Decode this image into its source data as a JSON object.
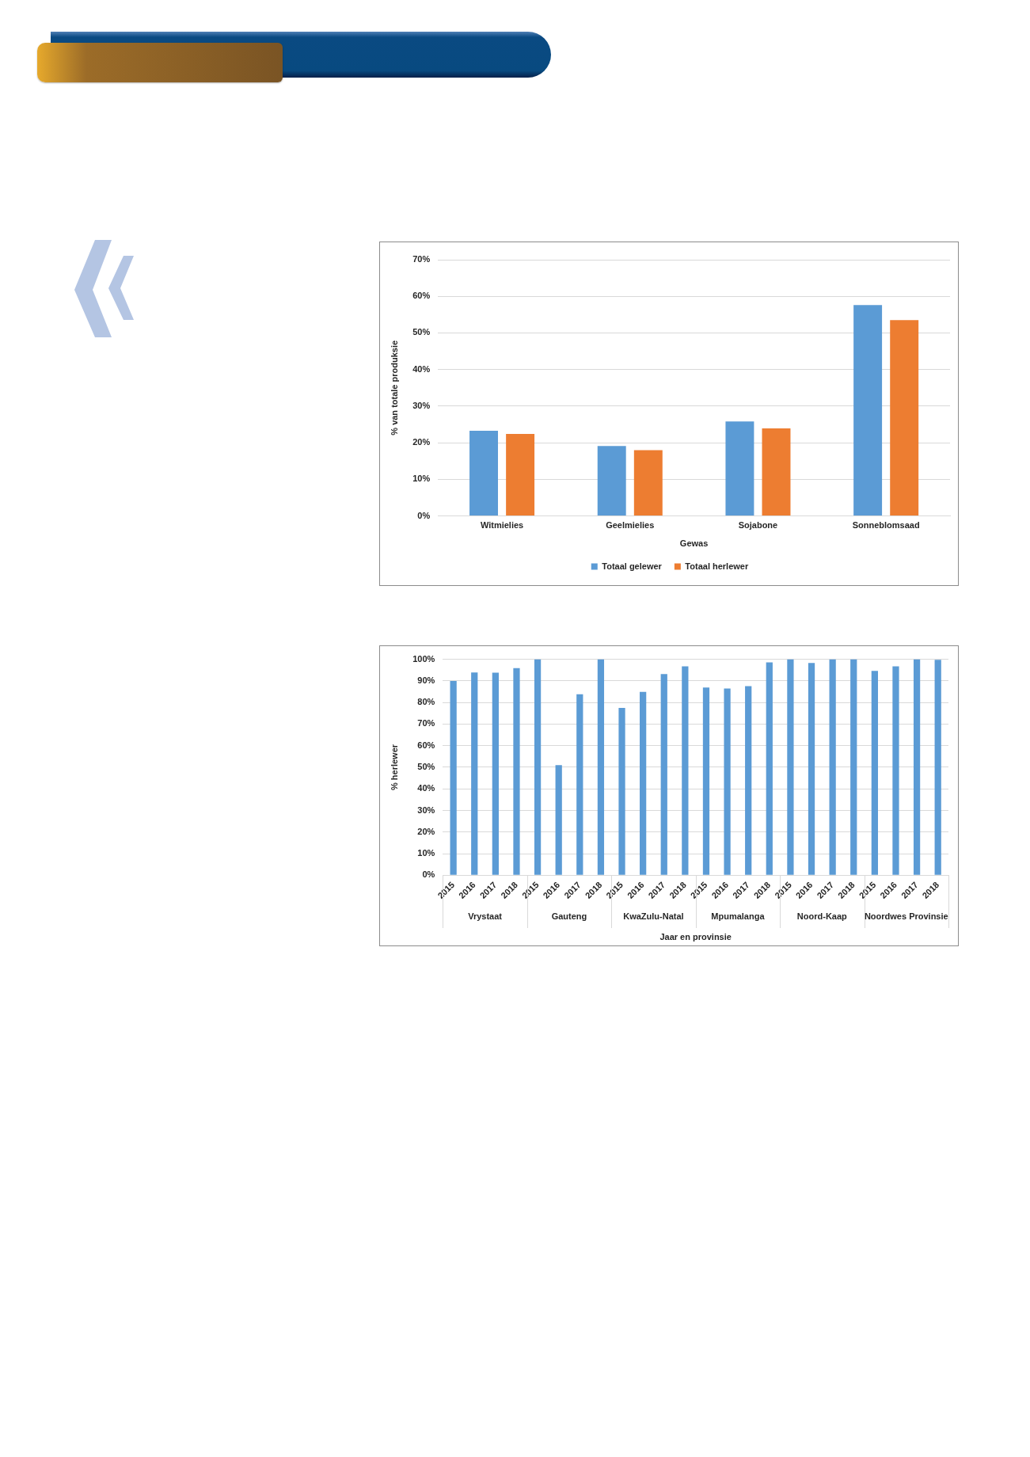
{
  "chart_data": [
    {
      "type": "bar",
      "categories": [
        "Witmielies",
        "Geelmielies",
        "Sojabone",
        "Sonneblomsaad"
      ],
      "series": [
        {
          "name": "Totaal gelewer",
          "color": "#5b9bd5",
          "values": [
            23.3,
            19.1,
            25.8,
            57.6
          ]
        },
        {
          "name": "Totaal herlewer",
          "color": "#ed7d31",
          "values": [
            22.4,
            18.0,
            23.9,
            53.5
          ]
        }
      ],
      "xlabel": "Gewas",
      "ylabel": "% van totale produksie",
      "ylim": [
        0,
        70
      ],
      "yticks": [
        {
          "value": 0,
          "label": "0%"
        },
        {
          "value": 10,
          "label": "10%"
        },
        {
          "value": 20,
          "label": "20%"
        },
        {
          "value": 30,
          "label": "30%"
        },
        {
          "value": 40,
          "label": "40%"
        },
        {
          "value": 50,
          "label": "50%"
        },
        {
          "value": 60,
          "label": "60%"
        },
        {
          "value": 70,
          "label": "70%"
        }
      ],
      "grid": "y",
      "legend": "bottom"
    },
    {
      "type": "bar",
      "categories": [
        "2015",
        "2016",
        "2017",
        "2018",
        "2015",
        "2016",
        "2017",
        "2018",
        "2015",
        "2016",
        "2017",
        "2018",
        "2015",
        "2016",
        "2017",
        "2018",
        "2015",
        "2016",
        "2017",
        "2018",
        "2015",
        "2016",
        "2017",
        "2018"
      ],
      "values": [
        90.0,
        93.9,
        93.8,
        95.9,
        100,
        51.0,
        83.8,
        100,
        77.5,
        84.9,
        93.2,
        96.7,
        86.9,
        86.5,
        87.6,
        98.6,
        100,
        98.3,
        100,
        100,
        94.6,
        96.7,
        100,
        99.8
      ],
      "color": "#5b9bd5",
      "xlabel": "Jaar en provinsie",
      "ylabel": "% herlewer",
      "ylim": [
        0,
        100
      ],
      "yticks": [
        {
          "value": 0,
          "label": "0%"
        },
        {
          "value": 10,
          "label": "10%"
        },
        {
          "value": 20,
          "label": "20%"
        },
        {
          "value": 30,
          "label": "30%"
        },
        {
          "value": 40,
          "label": "40%"
        },
        {
          "value": 50,
          "label": "50%"
        },
        {
          "value": 60,
          "label": "60%"
        },
        {
          "value": 70,
          "label": "70%"
        },
        {
          "value": 80,
          "label": "80%"
        },
        {
          "value": 90,
          "label": "90%"
        },
        {
          "value": 100,
          "label": "100%"
        }
      ],
      "grid": "y",
      "annotations": [
        "Vrystaat",
        "Gauteng",
        "KwaZulu-Natal",
        "Mpumalanga",
        "Noord-Kaap",
        "Noordwes Provinsie"
      ]
    }
  ]
}
